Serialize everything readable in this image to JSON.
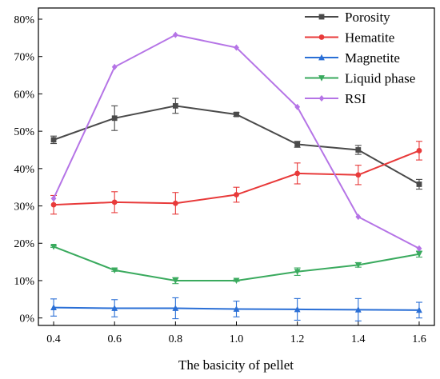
{
  "chart_data": {
    "type": "line",
    "title": "",
    "xlabel": "The basicity of pellet",
    "ylabel": "",
    "x": [
      0.4,
      0.6,
      0.8,
      1.0,
      1.2,
      1.4,
      1.6
    ],
    "x_tick_labels": [
      "0.4",
      "0.6",
      "0.8",
      "1.0",
      "1.2",
      "1.4",
      "1.6"
    ],
    "ylim": [
      -2,
      83
    ],
    "y_ticks": [
      0,
      10,
      20,
      30,
      40,
      50,
      60,
      70,
      80
    ],
    "y_tick_labels": [
      "0%",
      "10%",
      "20%",
      "30%",
      "40%",
      "50%",
      "60%",
      "70%",
      "80%"
    ],
    "legend_position": "top-right",
    "grid": false,
    "series": [
      {
        "name": "Porosity",
        "color": "#4a4a4a",
        "marker": "square",
        "values": [
          47.7,
          53.5,
          56.8,
          54.5,
          46.5,
          45.0,
          35.8
        ],
        "errors": [
          1.0,
          3.3,
          2.0,
          0.5,
          0.8,
          1.2,
          1.3
        ]
      },
      {
        "name": "Hematite",
        "color": "#e83a3a",
        "marker": "circle",
        "values": [
          30.3,
          31.0,
          30.7,
          33.0,
          38.7,
          38.3,
          44.8
        ],
        "errors": [
          2.5,
          2.8,
          2.9,
          2.0,
          2.8,
          2.6,
          2.5
        ]
      },
      {
        "name": "Magnetite",
        "color": "#2a6fd6",
        "marker": "triangle-up",
        "values": [
          2.8,
          2.6,
          2.6,
          2.4,
          2.3,
          2.2,
          2.1
        ],
        "errors": [
          2.3,
          2.3,
          2.8,
          2.1,
          2.9,
          3.0,
          2.1
        ]
      },
      {
        "name": "Liquid phase",
        "color": "#3aaa5e",
        "marker": "triangle-down",
        "values": [
          19.1,
          12.8,
          10.0,
          10.0,
          12.4,
          14.2,
          17.1
        ],
        "errors": [
          0.2,
          0.3,
          0.8,
          0.2,
          1.0,
          0.6,
          0.8
        ]
      },
      {
        "name": "RSI",
        "color": "#b574e6",
        "marker": "diamond",
        "values": [
          32.0,
          67.2,
          75.8,
          72.4,
          56.5,
          27.1,
          18.6
        ],
        "errors": [
          0,
          0,
          0,
          0,
          0,
          0,
          0
        ]
      }
    ]
  }
}
